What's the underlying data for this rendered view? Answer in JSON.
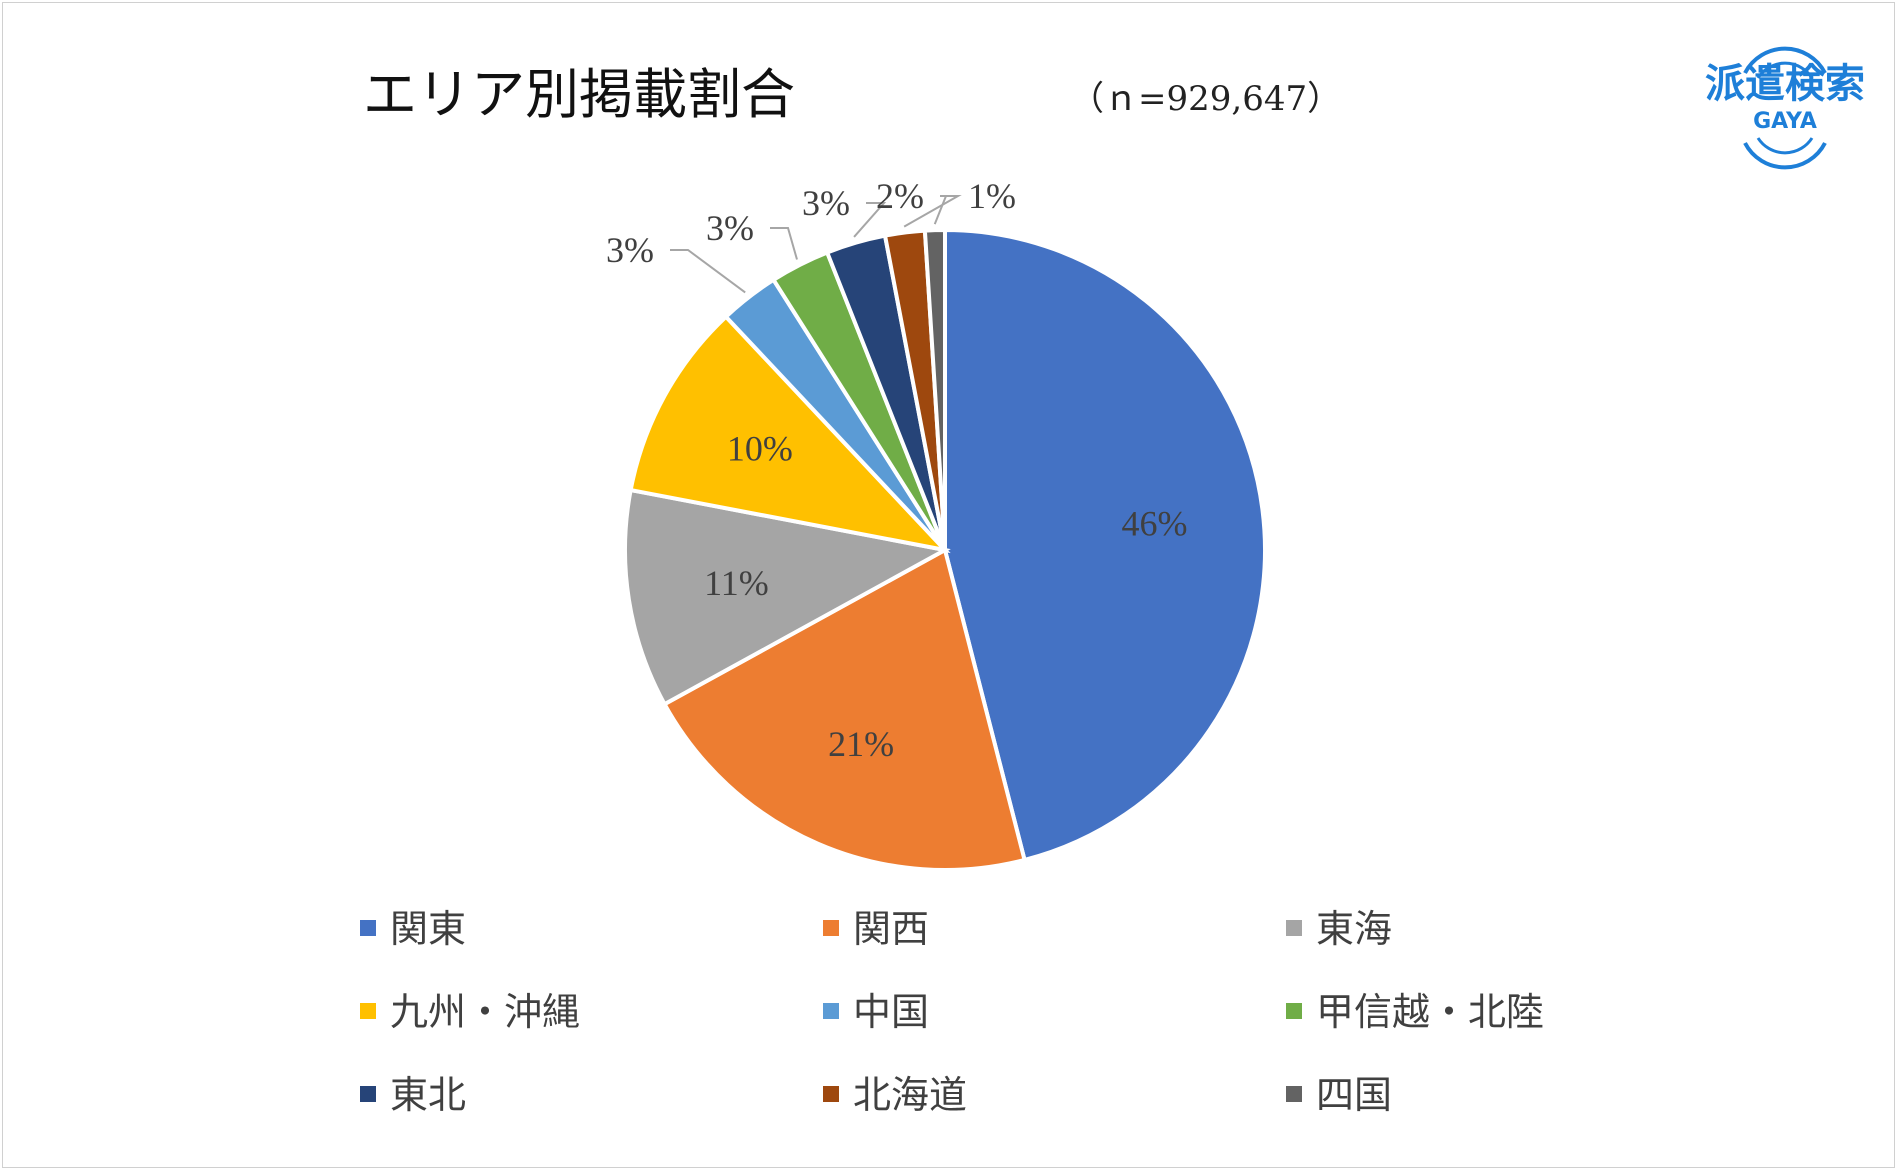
{
  "chart_data": {
    "type": "pie",
    "title": "エリア別掲載割合",
    "subtitle": "（ｎ=929,647）",
    "categories": [
      "関東",
      "関西",
      "東海",
      "九州・沖縄",
      "中国",
      "甲信越・北陸",
      "東北",
      "北海道",
      "四国"
    ],
    "values": [
      46,
      21,
      11,
      10,
      3,
      3,
      3,
      2,
      1
    ],
    "labels": [
      "46%",
      "21%",
      "11%",
      "10%",
      "3%",
      "3%",
      "3%",
      "2%",
      "1%"
    ],
    "colors": [
      "#4472C4",
      "#ED7D31",
      "#A5A5A5",
      "#FFC000",
      "#5B9BD5",
      "#70AD47",
      "#264478",
      "#9E480E",
      "#636363"
    ],
    "legend_position": "bottom",
    "start_angle_deg": 0,
    "direction": "clockwise"
  },
  "logo": {
    "text": "派遣検索",
    "subtext": "GAYA",
    "color": "#1E7FD8"
  }
}
